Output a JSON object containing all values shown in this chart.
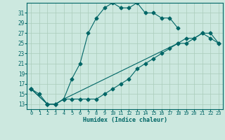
{
  "xlabel": "Humidex (Indice chaleur)",
  "bg_color": "#cce8df",
  "line_color": "#006666",
  "grid_color": "#aaccbb",
  "xlim": [
    -0.5,
    23.5
  ],
  "ylim": [
    12.0,
    33.0
  ],
  "yticks": [
    13,
    15,
    17,
    19,
    21,
    23,
    25,
    27,
    29,
    31
  ],
  "xticks": [
    0,
    1,
    2,
    3,
    4,
    5,
    6,
    7,
    8,
    9,
    10,
    11,
    12,
    13,
    14,
    15,
    16,
    17,
    18,
    19,
    20,
    21,
    22,
    23
  ],
  "line1_x": [
    0,
    1,
    2,
    3,
    4,
    5,
    6,
    7,
    8,
    9,
    10,
    11,
    12,
    13,
    14,
    15,
    16,
    17,
    18
  ],
  "line1_y": [
    16,
    15,
    13,
    13,
    14,
    18,
    21,
    27,
    30,
    32,
    33,
    32,
    32,
    33,
    31,
    31,
    30,
    30,
    28
  ],
  "line2_x": [
    0,
    2,
    3,
    4,
    5,
    6,
    7,
    8,
    9,
    10,
    11,
    12,
    13,
    14,
    15,
    16,
    17,
    18,
    19,
    20,
    21,
    22,
    23
  ],
  "line2_y": [
    16,
    13,
    13,
    14,
    14,
    14,
    14,
    14,
    15,
    16,
    17,
    18,
    20,
    21,
    22,
    23,
    24,
    25,
    25,
    26,
    27,
    27,
    25
  ],
  "line3_x": [
    0,
    2,
    3,
    4,
    18,
    19,
    20,
    21,
    22,
    23
  ],
  "line3_y": [
    16,
    13,
    13,
    14,
    25,
    26,
    26,
    27,
    26,
    25
  ]
}
